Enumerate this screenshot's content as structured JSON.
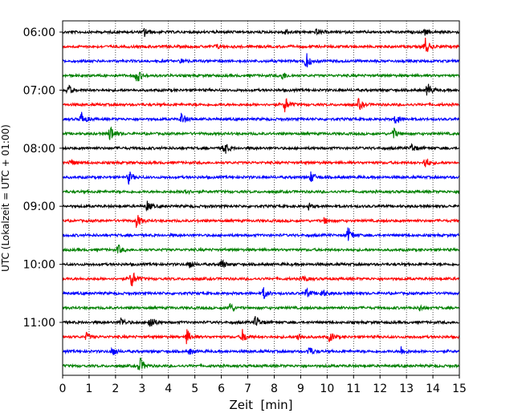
{
  "chart_data": {
    "type": "line",
    "subtype": "seismogram-helicorder",
    "title": "",
    "xlabel": "Zeit  [min]",
    "ylabel": "UTC (Lokalzeit = UTC + 01:00)",
    "xlim": [
      0,
      15
    ],
    "x_ticks": [
      "0",
      "1",
      "2",
      "3",
      "4",
      "5",
      "6",
      "7",
      "8",
      "9",
      "10",
      "11",
      "12",
      "13",
      "14",
      "15"
    ],
    "y_tick_labels": [
      "06:00",
      "07:00",
      "08:00",
      "09:00",
      "10:00",
      "11:00"
    ],
    "traces_per_hour": 4,
    "trace_colors": [
      "#000000",
      "#ff0000",
      "#0000ff",
      "#008000"
    ],
    "grid": "vertical dotted at each minute",
    "traces": [
      {
        "start": "06:00",
        "events": [
          {
            "t": 3.1,
            "amp": 0.6
          },
          {
            "t": 8.4,
            "amp": 0.5
          },
          {
            "t": 9.6,
            "amp": 0.4
          },
          {
            "t": 13.7,
            "amp": 0.35
          }
        ]
      },
      {
        "start": "06:15",
        "events": [
          {
            "t": 13.7,
            "amp": 1.3
          },
          {
            "t": 5.8,
            "amp": 0.3
          }
        ]
      },
      {
        "start": "06:30",
        "events": [
          {
            "t": 9.2,
            "amp": 1.2
          },
          {
            "t": 4.5,
            "amp": 0.35
          }
        ]
      },
      {
        "start": "06:45",
        "events": [
          {
            "t": 2.8,
            "amp": 1.1
          },
          {
            "t": 8.3,
            "amp": 0.6
          }
        ]
      },
      {
        "start": "07:00",
        "events": [
          {
            "t": 0.2,
            "amp": 0.8
          },
          {
            "t": 13.8,
            "amp": 1.0
          }
        ]
      },
      {
        "start": "07:15",
        "events": [
          {
            "t": 8.4,
            "amp": 1.1
          },
          {
            "t": 11.2,
            "amp": 0.8
          }
        ]
      },
      {
        "start": "07:30",
        "events": [
          {
            "t": 0.7,
            "amp": 1.0
          },
          {
            "t": 4.5,
            "amp": 0.9
          },
          {
            "t": 12.6,
            "amp": 0.8
          }
        ]
      },
      {
        "start": "07:45",
        "events": [
          {
            "t": 1.8,
            "amp": 1.3
          },
          {
            "t": 12.5,
            "amp": 0.8
          }
        ]
      },
      {
        "start": "08:00",
        "events": [
          {
            "t": 6.1,
            "amp": 1.1
          },
          {
            "t": 13.2,
            "amp": 0.6
          }
        ]
      },
      {
        "start": "08:15",
        "events": [
          {
            "t": 13.7,
            "amp": 0.9
          },
          {
            "t": 0.3,
            "amp": 0.4
          }
        ]
      },
      {
        "start": "08:30",
        "events": [
          {
            "t": 2.5,
            "amp": 0.9
          },
          {
            "t": 9.4,
            "amp": 0.8
          }
        ]
      },
      {
        "start": "08:45",
        "events": [
          {
            "t": 4.6,
            "amp": 0.5
          }
        ]
      },
      {
        "start": "09:00",
        "events": [
          {
            "t": 3.2,
            "amp": 0.7
          },
          {
            "t": 9.3,
            "amp": 0.4
          }
        ]
      },
      {
        "start": "09:15",
        "events": [
          {
            "t": 2.8,
            "amp": 1.0
          },
          {
            "t": 9.9,
            "amp": 0.4
          }
        ]
      },
      {
        "start": "09:30",
        "events": [
          {
            "t": 10.8,
            "amp": 1.1
          }
        ]
      },
      {
        "start": "09:45",
        "events": [
          {
            "t": 2.1,
            "amp": 0.6
          }
        ]
      },
      {
        "start": "10:00",
        "events": [
          {
            "t": 4.8,
            "amp": 0.6
          },
          {
            "t": 6.0,
            "amp": 0.7
          }
        ]
      },
      {
        "start": "10:15",
        "events": [
          {
            "t": 2.6,
            "amp": 1.4
          },
          {
            "t": 9.1,
            "amp": 0.4
          }
        ]
      },
      {
        "start": "10:30",
        "events": [
          {
            "t": 7.6,
            "amp": 0.8
          },
          {
            "t": 9.2,
            "amp": 0.7
          },
          {
            "t": 9.8,
            "amp": 0.6
          }
        ]
      },
      {
        "start": "10:45",
        "events": [
          {
            "t": 6.3,
            "amp": 0.8
          },
          {
            "t": 13.5,
            "amp": 0.4
          }
        ]
      },
      {
        "start": "11:00",
        "events": [
          {
            "t": 3.3,
            "amp": 1.2
          },
          {
            "t": 7.3,
            "amp": 1.0
          },
          {
            "t": 2.2,
            "amp": 0.7
          }
        ]
      },
      {
        "start": "11:15",
        "events": [
          {
            "t": 4.7,
            "amp": 1.0
          },
          {
            "t": 6.8,
            "amp": 0.9
          },
          {
            "t": 8.9,
            "amp": 0.6
          },
          {
            "t": 10.1,
            "amp": 0.7
          },
          {
            "t": 0.9,
            "amp": 0.5
          }
        ]
      },
      {
        "start": "11:30",
        "events": [
          {
            "t": 1.9,
            "amp": 0.7
          },
          {
            "t": 9.3,
            "amp": 0.8
          },
          {
            "t": 12.8,
            "amp": 0.6
          },
          {
            "t": 4.8,
            "amp": 0.4
          }
        ]
      },
      {
        "start": "11:45",
        "events": [
          {
            "t": 2.9,
            "amp": 1.3
          }
        ]
      }
    ]
  }
}
